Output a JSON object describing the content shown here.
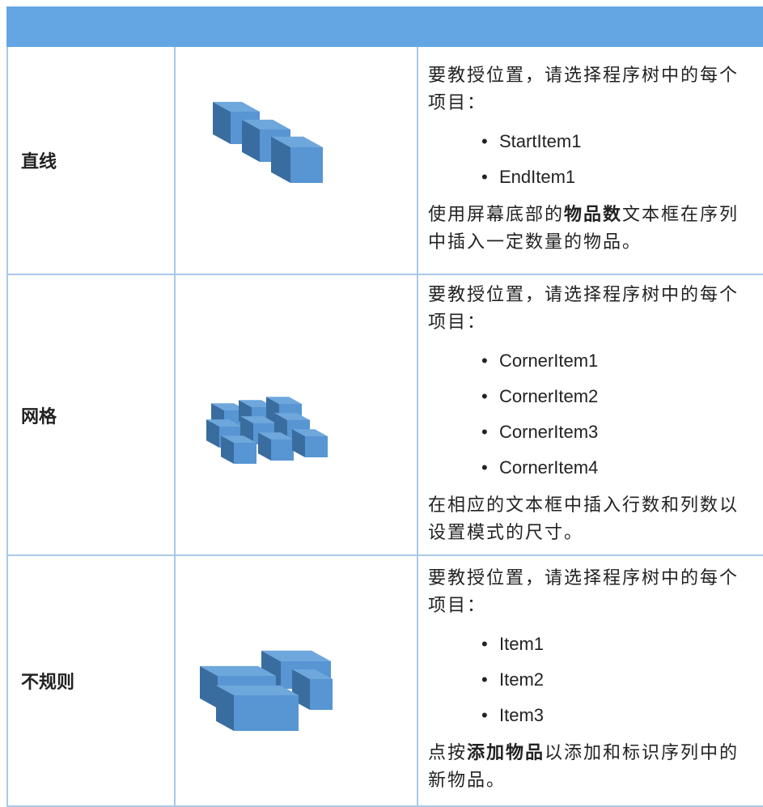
{
  "table": {
    "rows": [
      {
        "label": "直线",
        "intro": "要教授位置，请选择程序树中的每个项目：",
        "items": [
          "StartItem1",
          "EndItem1"
        ],
        "footer": [
          {
            "text": "使用屏幕底部的",
            "bold": false
          },
          {
            "text": "物品数",
            "bold": true
          },
          {
            "text": "文本框在序列中插入一定数量的物品。",
            "bold": false
          }
        ]
      },
      {
        "label": "网格",
        "intro": "要教授位置，请选择程序树中的每个项目：",
        "items": [
          "CornerItem1",
          "CornerItem2",
          "CornerItem3",
          "CornerItem4"
        ],
        "footer": [
          {
            "text": "在相应的文本框中插入行数和列数以设置模式的尺寸。",
            "bold": false
          }
        ]
      },
      {
        "label": "不规则",
        "intro": "要教授位置，请选择程序树中的每个项目：",
        "items": [
          "Item1",
          "Item2",
          "Item3"
        ],
        "footer": [
          {
            "text": "点按",
            "bold": false
          },
          {
            "text": "添加物品",
            "bold": true
          },
          {
            "text": "以添加和标识序列中的新物品。",
            "bold": false
          }
        ]
      }
    ]
  }
}
